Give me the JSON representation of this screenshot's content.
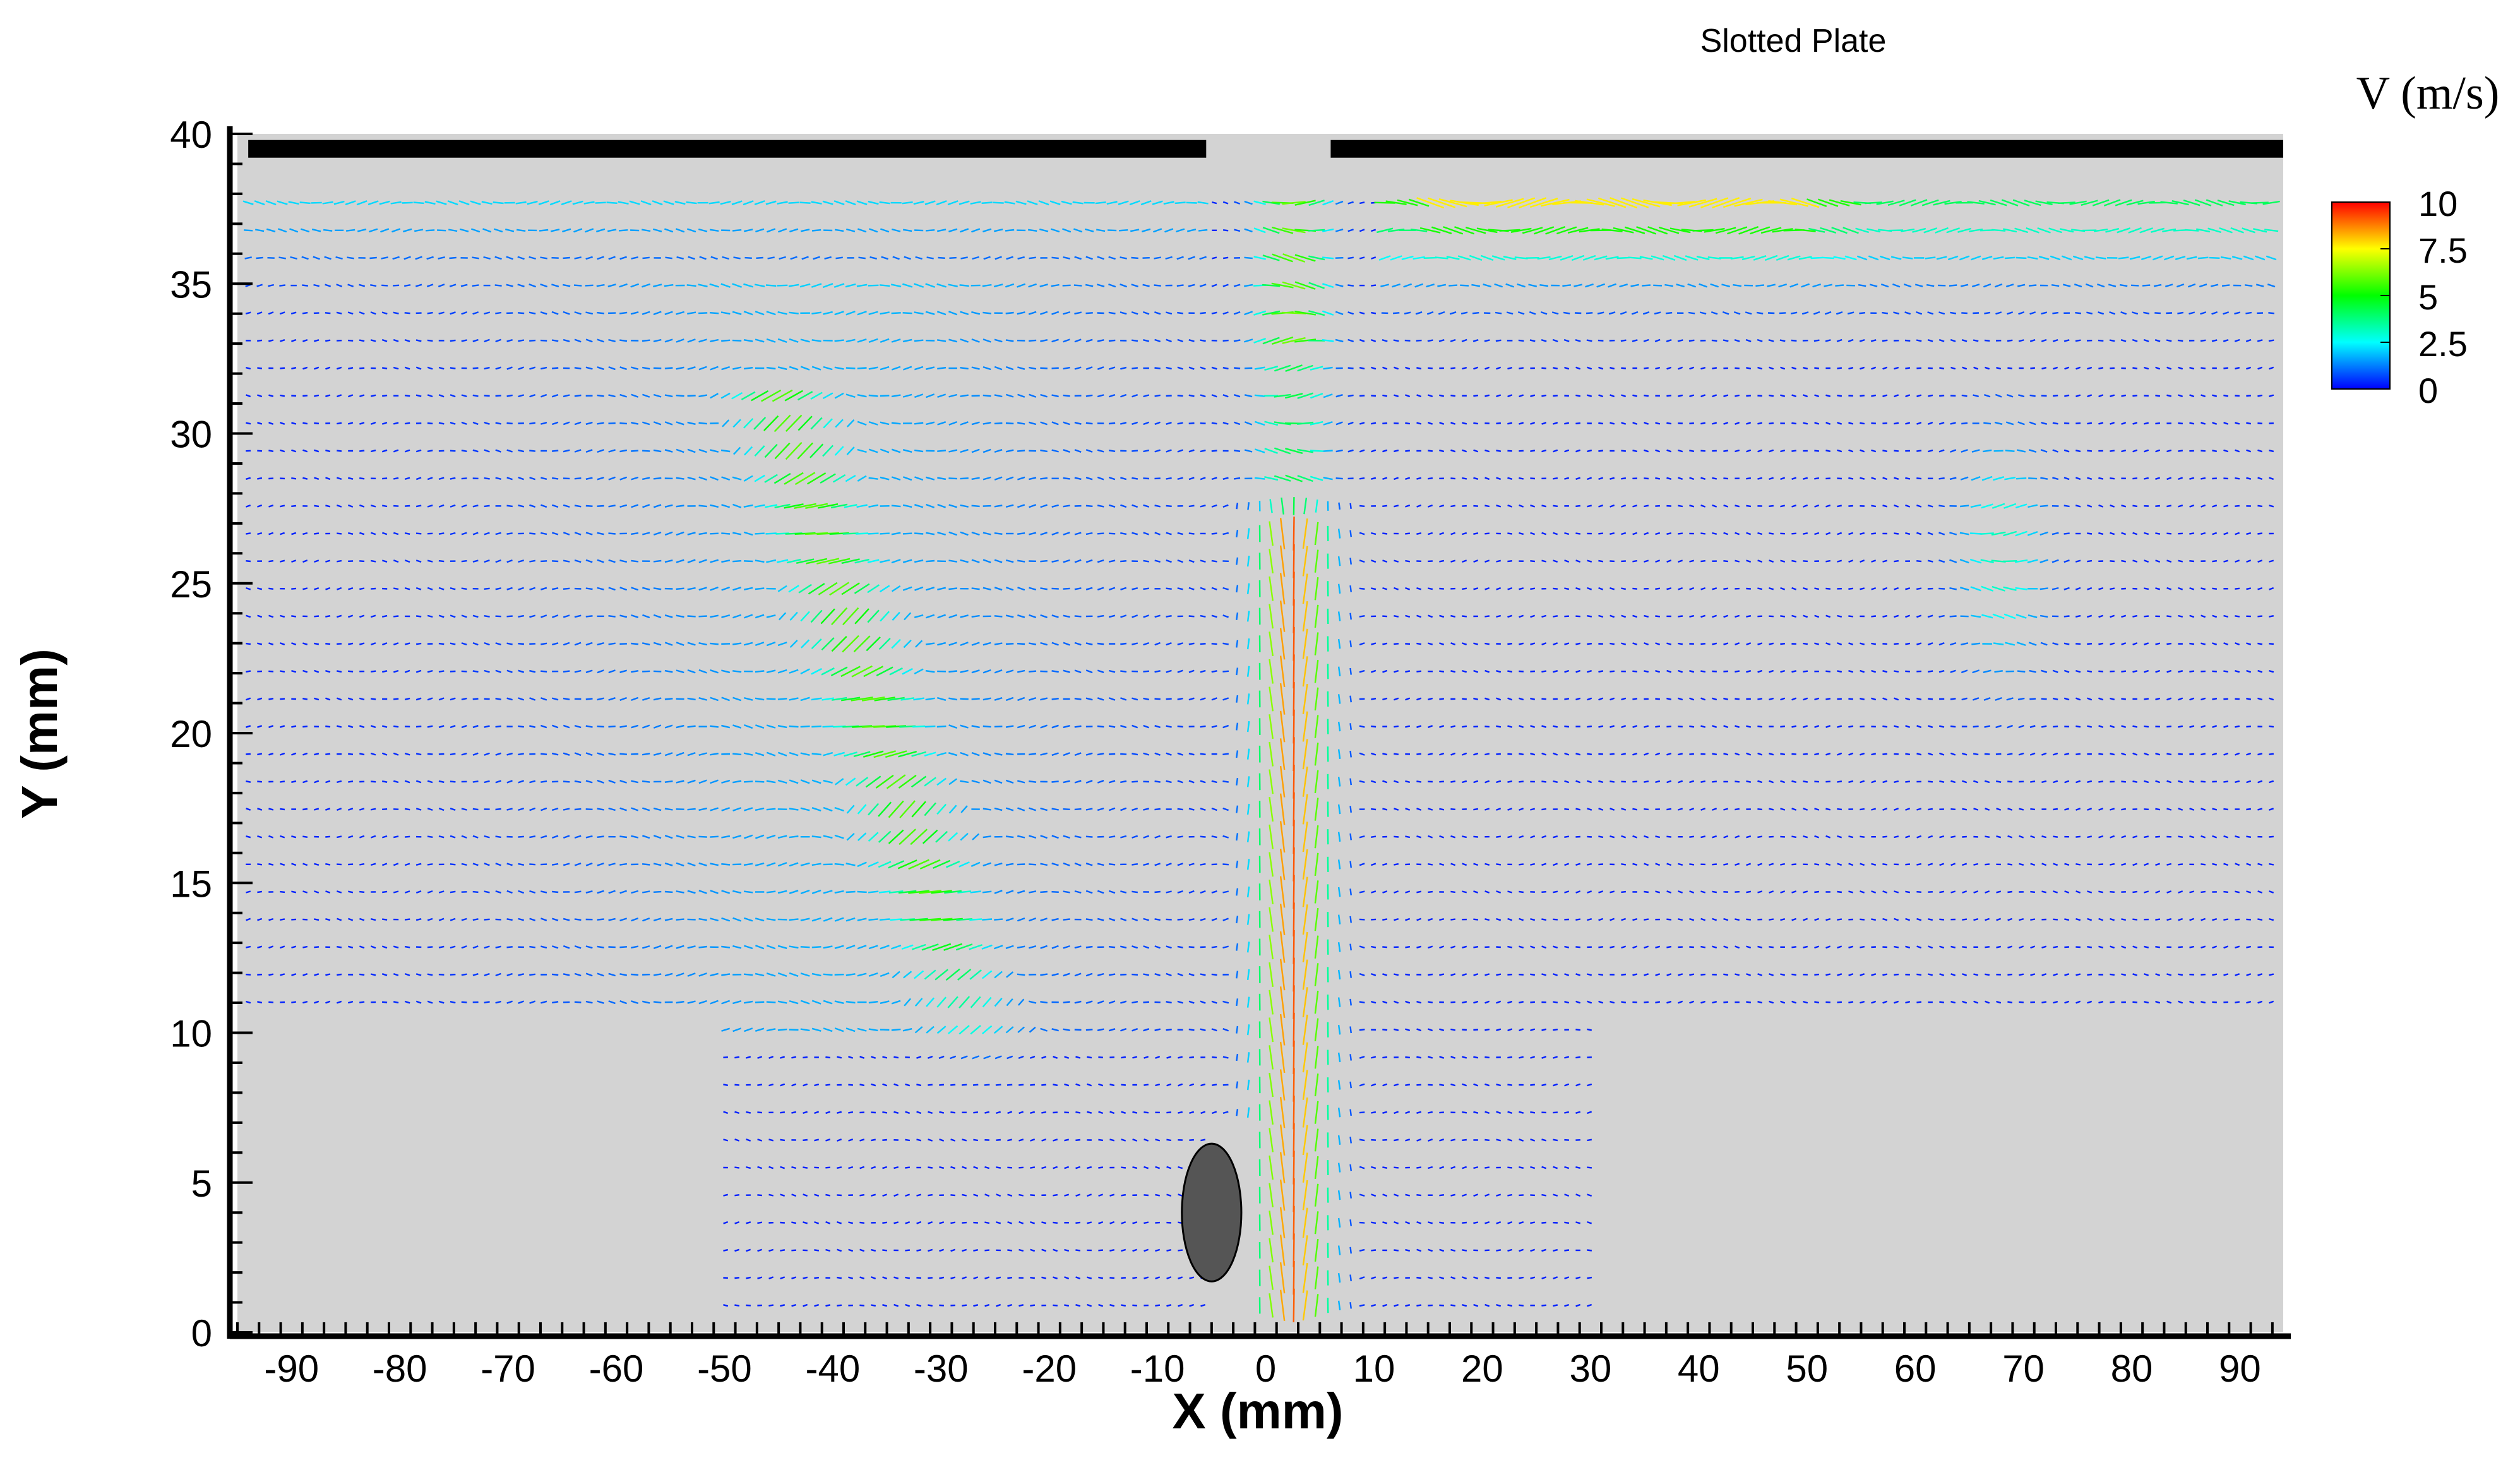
{
  "chart_data": {
    "type": "vector_field",
    "title": "Slotted Plate",
    "xlabel": "X (mm)",
    "ylabel": "Y (mm)",
    "xlim": [
      -95,
      94
    ],
    "ylim": [
      0,
      40
    ],
    "xticks": [
      -90,
      -80,
      -70,
      -60,
      -50,
      -40,
      -30,
      -20,
      -10,
      0,
      10,
      20,
      30,
      40,
      50,
      60,
      70,
      80,
      90
    ],
    "xtick_labels": [
      "-90",
      "-80",
      "-70",
      "-60",
      "-50",
      "-40",
      "-30",
      "-20",
      "-10",
      "0",
      "10",
      "20",
      "30",
      "40",
      "50",
      "60",
      "70",
      "80",
      "90"
    ],
    "yticks": [
      0,
      5,
      10,
      15,
      20,
      25,
      30,
      35,
      40
    ],
    "ytick_labels": [
      "0",
      "5",
      "10",
      "15",
      "20",
      "25",
      "30",
      "35",
      "40"
    ],
    "grid": false,
    "background_color": "#d3d3d3",
    "colorbar": {
      "title": "V (m/s)",
      "min": 0,
      "max": 10,
      "ticks": [
        10,
        7.5,
        5,
        2.5,
        0
      ],
      "tick_labels": [
        "10",
        "7.5",
        "5",
        "2.5",
        "0"
      ],
      "colormap": [
        "#0000ff",
        "#00ffff",
        "#00ff00",
        "#ffff00",
        "#ff0000"
      ],
      "placement": "right"
    },
    "plate": {
      "y": 39.5,
      "segments": [
        [
          -94,
          -5.5
        ],
        [
          6,
          94
        ]
      ],
      "color": "#000000"
    },
    "obstacle": {
      "center": [
        -5,
        4.0
      ],
      "width": 5.5,
      "height": 4.6,
      "color": "#555555"
    },
    "jet": {
      "x_center": 2.5,
      "peak_speed": 8.8,
      "y_range": [
        0,
        38
      ]
    }
  }
}
